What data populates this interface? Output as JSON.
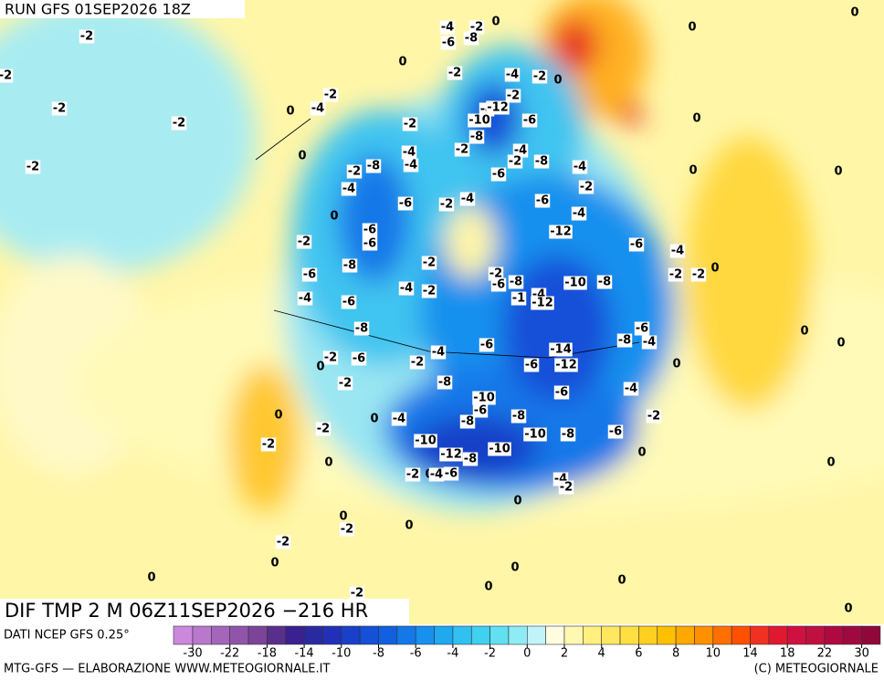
{
  "header": {
    "run": "RUN GFS 01SEP2026 18Z"
  },
  "map": {
    "labels": [
      -2,
      -2,
      -2,
      -2,
      -2,
      0,
      0,
      -4,
      -2,
      0,
      -4,
      -2,
      0,
      -6,
      -8,
      -2,
      -4,
      -2,
      0,
      -2,
      -4,
      -12,
      -10,
      -6,
      -2,
      -8,
      -2,
      -4,
      -4,
      -4,
      -2,
      -8,
      -4,
      -2,
      -8,
      -4,
      -6,
      -2,
      -4,
      -6,
      -2,
      -6,
      -4,
      0,
      -6,
      -6,
      -2,
      -12,
      -6,
      -4,
      -8,
      -2,
      -2,
      -6,
      -8,
      -6,
      -2,
      -2,
      0,
      -10,
      -8,
      -4,
      -4,
      -2,
      -6,
      -1,
      -4,
      -12,
      -8,
      -6,
      -8,
      -4,
      -6,
      -4,
      -14,
      -2,
      -6,
      0,
      -2,
      -6,
      -12,
      -2,
      -8,
      -6,
      -4,
      -10,
      -6,
      -8,
      -8,
      0,
      0,
      -4,
      -2,
      -2,
      -10,
      -8,
      -6,
      -10,
      -2,
      -12,
      -8,
      -10,
      0,
      0,
      -2,
      0,
      -4,
      -6,
      -4,
      -2,
      0,
      0,
      -2,
      0,
      -2,
      0,
      0,
      0,
      0,
      0,
      -2,
      0,
      0,
      0,
      0,
      0,
      0,
      0,
      0,
      0,
      0,
      0
    ]
  },
  "footer": {
    "title": "DIF TMP 2 M 06Z11SEP2026 −216 HR",
    "source": "DATI NCEP GFS 0.25°",
    "credit": "MTG-GFS — ELABORAZIONE WWW.METEOGIORNALE.IT",
    "copyright": "(C) METEOGIORNALE"
  },
  "colorbar": {
    "ticks": [
      -30,
      -22,
      -18,
      -14,
      -10,
      -8,
      -6,
      -4,
      -2,
      0,
      2,
      4,
      6,
      8,
      10,
      14,
      18,
      22,
      30
    ],
    "colors": [
      "#cc88dd",
      "#b878cc",
      "#a466bb",
      "#9055aa",
      "#7c4499",
      "#5a2e8c",
      "#3a2090",
      "#2a2aa0",
      "#2030b8",
      "#1840c8",
      "#1450d8",
      "#1060e0",
      "#1478e8",
      "#1890ee",
      "#20a8f0",
      "#30c0f2",
      "#40d0f0",
      "#60e0f0",
      "#90ecf4",
      "#c0f4f8",
      "#fffce0",
      "#fff8b0",
      "#fff080",
      "#ffe860",
      "#ffe040",
      "#ffd020",
      "#ffc000",
      "#ffa800",
      "#ff9000",
      "#ff7000",
      "#ff5000",
      "#f03020",
      "#e01830",
      "#d01040",
      "#c01040",
      "#b00840",
      "#a00840",
      "#900838"
    ]
  }
}
